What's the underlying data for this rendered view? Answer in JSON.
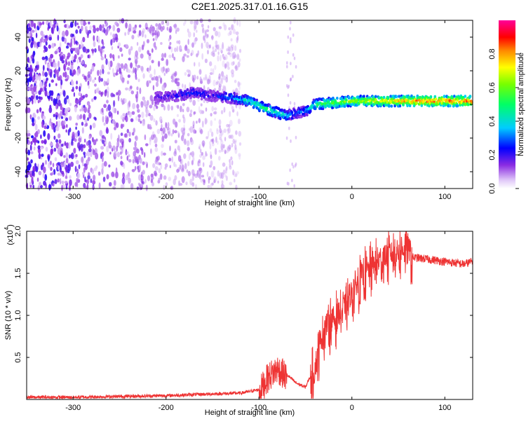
{
  "title": "C2E1.2025.317.01.16.G15",
  "chart_data": [
    {
      "type": "heatmap",
      "xlabel": "Height of straight line (km)",
      "ylabel": "Frequency (Hz)",
      "xlim": [
        -350,
        130
      ],
      "ylim": [
        -50,
        50
      ],
      "xticks": [
        -300,
        -200,
        -100,
        0,
        100
      ],
      "xtick_labels": [
        "-300",
        "-200",
        "-100",
        "0",
        "100"
      ],
      "yticks": [
        -40,
        -20,
        0,
        20,
        40
      ],
      "ytick_labels": [
        "-40",
        "-20",
        "0",
        "20",
        "40"
      ],
      "colorbar": {
        "label": "Normalized spectral amplitude",
        "range": [
          0,
          1
        ],
        "ticks": [
          0.0,
          0.2,
          0.4,
          0.6,
          0.8
        ],
        "tick_labels": [
          "0.0",
          "0.2",
          "0.4",
          "0.6",
          "0.8"
        ]
      },
      "ridge": {
        "x": [
          -210,
          -190,
          -170,
          -150,
          -130,
          -110,
          -95,
          -80,
          -70,
          -60,
          -50,
          -40,
          -20,
          0,
          20,
          40,
          60,
          80,
          100,
          130
        ],
        "y": [
          4,
          5,
          7,
          5,
          4,
          2,
          -2,
          -5,
          -7,
          -5,
          -4,
          0,
          1,
          2,
          2,
          2,
          2,
          2,
          2,
          2
        ],
        "amplitude": [
          0.15,
          0.2,
          0.25,
          0.2,
          0.3,
          0.45,
          0.5,
          0.45,
          0.4,
          0.3,
          0.3,
          0.5,
          0.6,
          0.65,
          0.7,
          0.75,
          0.8,
          0.85,
          0.85,
          0.85
        ]
      },
      "noise_region_x": [
        -350,
        -120
      ]
    },
    {
      "type": "line",
      "xlabel": "Height of straight line (km)",
      "ylabel": "SNR (10 * v/v)",
      "y_multiplier": "(x10^4)",
      "y_multiplier_base": "(x10",
      "y_multiplier_exp": "4",
      "y_multiplier_close": ")",
      "xlim": [
        -350,
        130
      ],
      "ylim": [
        0,
        2.0
      ],
      "xticks": [
        -300,
        -200,
        -100,
        0,
        100
      ],
      "xtick_labels": [
        "-300",
        "-200",
        "-100",
        "0",
        "100"
      ],
      "yticks": [
        0.5,
        1.0,
        1.5,
        2.0
      ],
      "ytick_labels": [
        "0.5",
        "1.0",
        "1.5",
        "2.0"
      ],
      "color": "#ee3333",
      "series": [
        {
          "name": "SNR",
          "x": [
            -350,
            -300,
            -250,
            -200,
            -150,
            -120,
            -100,
            -90,
            -80,
            -70,
            -60,
            -50,
            -40,
            -30,
            -20,
            -10,
            0,
            10,
            20,
            30,
            40,
            50,
            60,
            65,
            80,
            100,
            120,
            130
          ],
          "y": [
            0.03,
            0.03,
            0.04,
            0.05,
            0.07,
            0.08,
            0.12,
            0.3,
            0.4,
            0.3,
            0.2,
            0.15,
            0.4,
            0.9,
            1.0,
            1.1,
            1.3,
            1.5,
            1.6,
            1.7,
            1.75,
            1.8,
            1.85,
            1.7,
            1.68,
            1.65,
            1.62,
            1.65
          ]
        }
      ]
    }
  ]
}
